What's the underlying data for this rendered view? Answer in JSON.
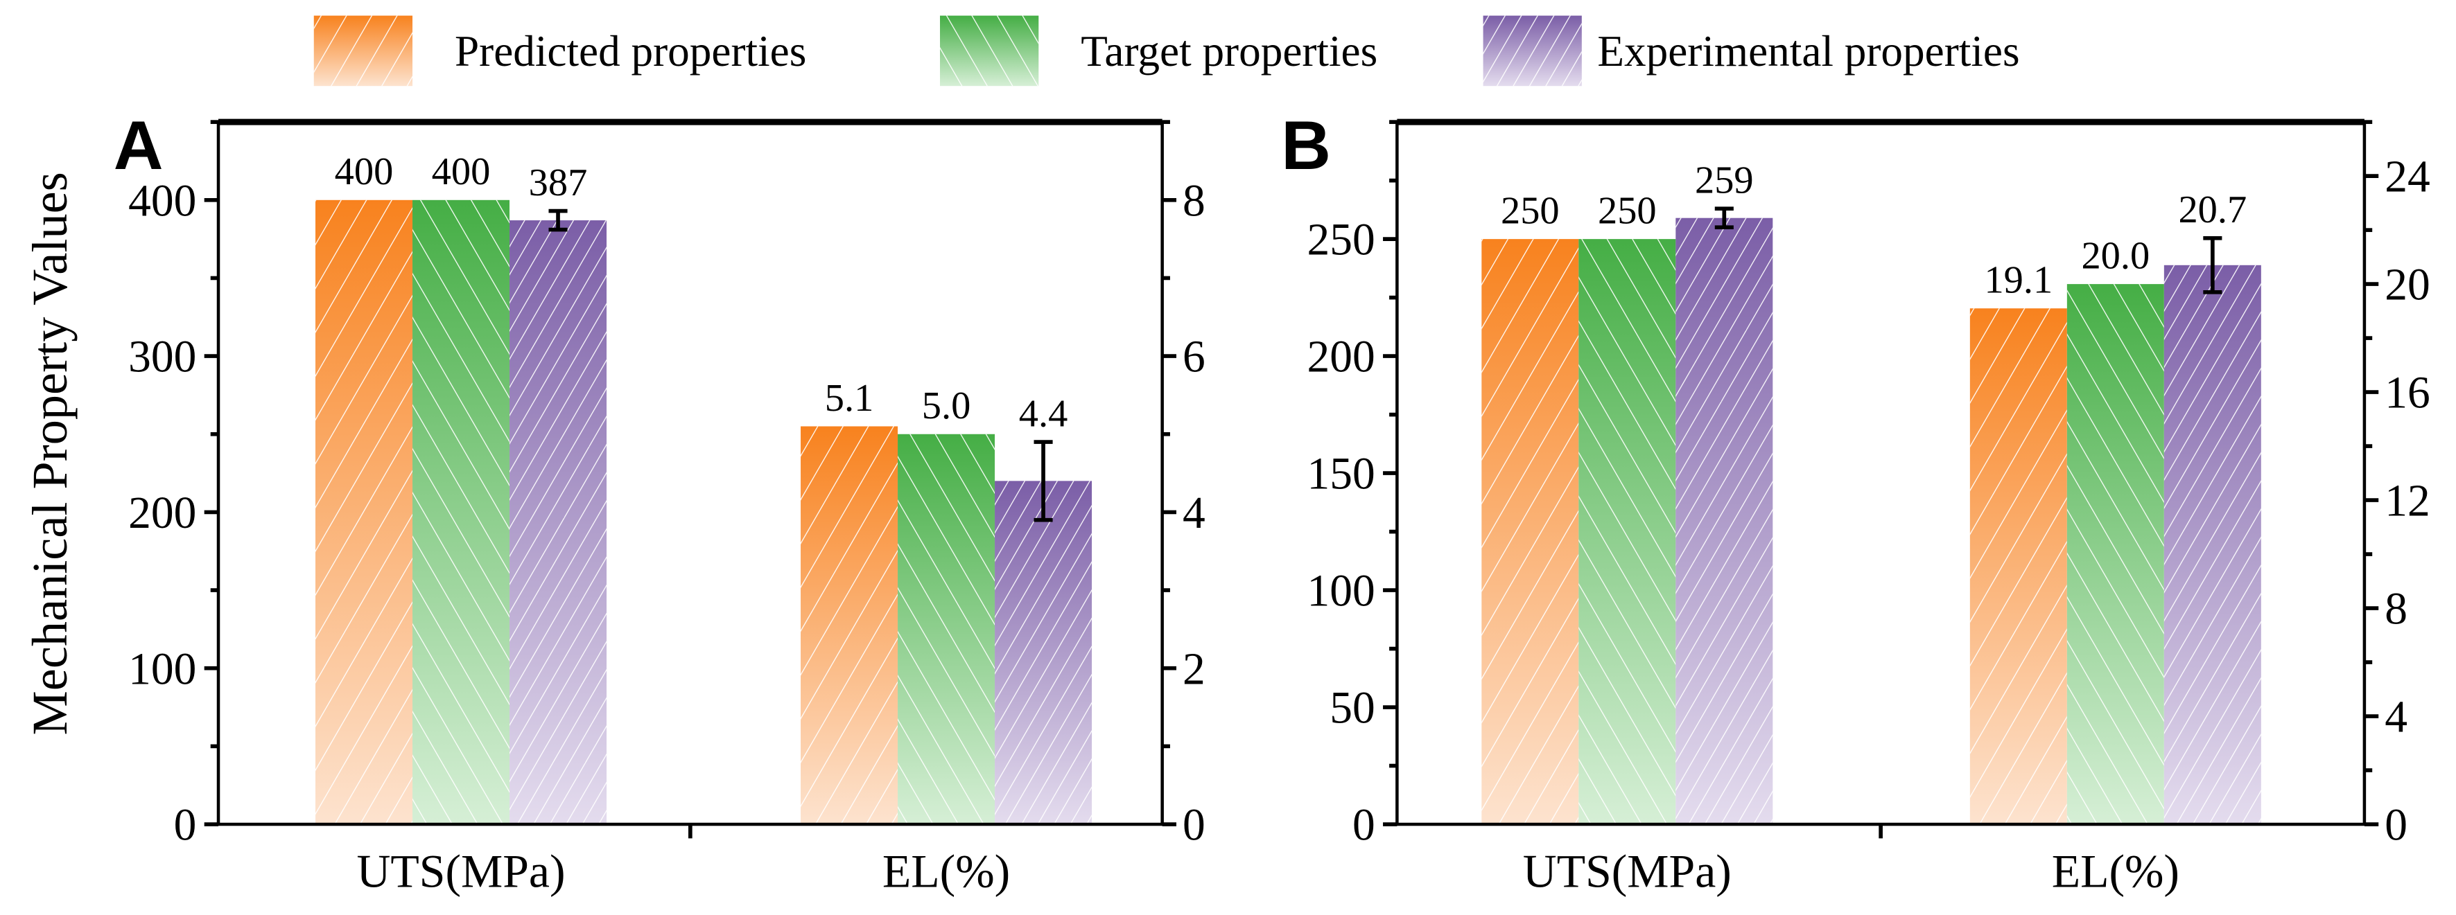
{
  "legend": {
    "placement": "top",
    "items": [
      {
        "label": "Predicted properties",
        "color": "#F8821E",
        "light": "#FDE3CF",
        "hatch": "forward"
      },
      {
        "label": "Target properties",
        "color": "#45AE45",
        "light": "#D6EFD6",
        "hatch": "backward"
      },
      {
        "label": "Experimental properties",
        "color": "#7B5EA7",
        "light": "#E4DCEE",
        "hatch": "forward-dense"
      }
    ]
  },
  "ylabel": "Mechanical Property Values",
  "chart_data": [
    {
      "type": "bar",
      "panel": "A",
      "categories": [
        "UTS(MPa)",
        "EL(%)"
      ],
      "left_axis": {
        "ylim": [
          0,
          450
        ],
        "major": [
          0,
          100,
          200,
          300,
          400
        ],
        "minor_step": 50,
        "applies_to": "UTS(MPa)"
      },
      "right_axis": {
        "ylim": [
          0,
          9
        ],
        "major": [
          0,
          2,
          4,
          6,
          8
        ],
        "minor_step": 1,
        "applies_to": "EL(%)"
      },
      "series": [
        {
          "name": "Predicted properties",
          "values": [
            400,
            5.1
          ],
          "labels": [
            "400",
            "5.1"
          ],
          "errors": [
            0,
            0
          ]
        },
        {
          "name": "Target properties",
          "values": [
            400,
            5.0
          ],
          "labels": [
            "400",
            "5.0"
          ],
          "errors": [
            0,
            0
          ]
        },
        {
          "name": "Experimental properties",
          "values": [
            387,
            4.4
          ],
          "labels": [
            "387",
            "4.4"
          ],
          "errors": [
            6,
            0.5
          ]
        }
      ]
    },
    {
      "type": "bar",
      "panel": "B",
      "categories": [
        "UTS(MPa)",
        "EL(%)"
      ],
      "left_axis": {
        "ylim": [
          0,
          300
        ],
        "major": [
          0,
          50,
          100,
          150,
          200,
          250
        ],
        "minor_step": 25,
        "applies_to": "UTS(MPa)"
      },
      "right_axis": {
        "ylim": [
          0,
          26
        ],
        "major": [
          0,
          4,
          8,
          12,
          16,
          20,
          24
        ],
        "minor_step": 2,
        "applies_to": "EL(%)"
      },
      "series": [
        {
          "name": "Predicted properties",
          "values": [
            250,
            19.1
          ],
          "labels": [
            "250",
            "19.1"
          ],
          "errors": [
            0,
            0
          ]
        },
        {
          "name": "Target properties",
          "values": [
            250,
            20.0
          ],
          "labels": [
            "250",
            "20.0"
          ],
          "errors": [
            0,
            0
          ]
        },
        {
          "name": "Experimental properties",
          "values": [
            259,
            20.7
          ],
          "labels": [
            "259",
            "20.7"
          ],
          "errors": [
            4,
            1.0
          ]
        }
      ]
    }
  ]
}
